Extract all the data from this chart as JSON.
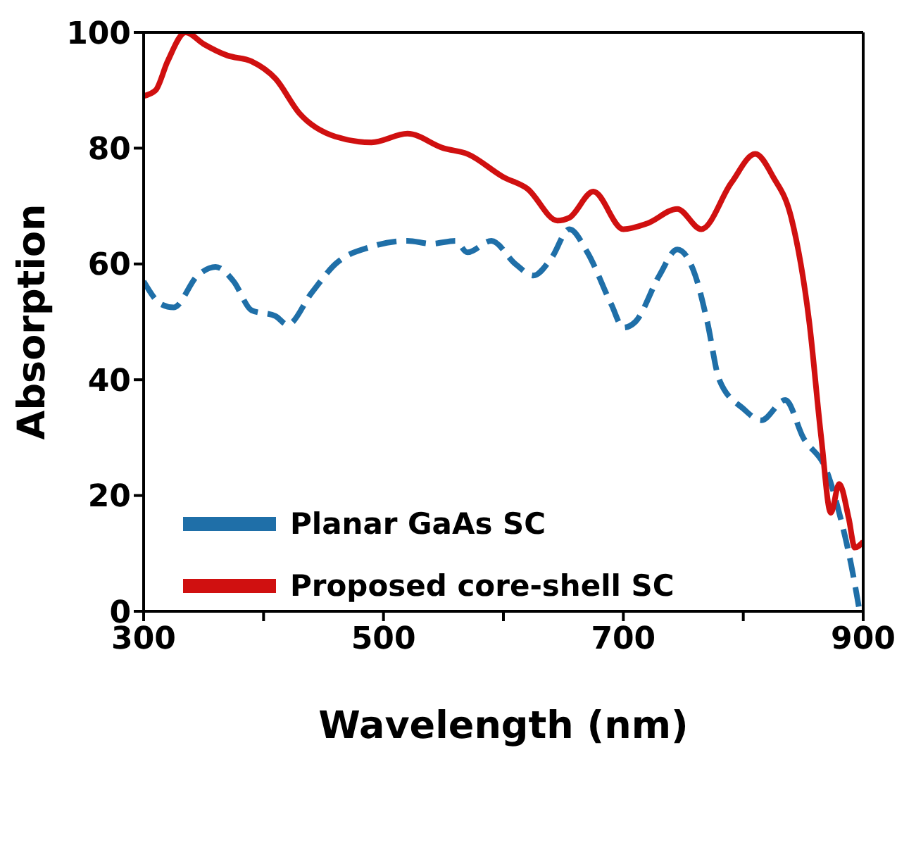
{
  "chart_data": {
    "type": "line",
    "xlabel": "Wavelength (nm)",
    "ylabel": "Absorption",
    "xlim": [
      300,
      900
    ],
    "ylim": [
      0,
      100
    ],
    "xticks": [
      300,
      {
        "value": 400,
        "label": null
      },
      500,
      {
        "value": 600,
        "label": null
      },
      700,
      {
        "value": 800,
        "label": null
      },
      900
    ],
    "yticks": [
      0,
      20,
      40,
      60,
      80,
      100
    ],
    "legend": "left",
    "marker": "none",
    "series": [
      {
        "name": "Planar GaAs SC",
        "color": "#1f6fa8",
        "line_style": "dashed",
        "x": [
          300,
          315,
          325,
          345,
          360,
          375,
          390,
          410,
          420,
          440,
          460,
          490,
          520,
          540,
          560,
          570,
          590,
          610,
          625,
          640,
          655,
          670,
          690,
          700,
          710,
          730,
          745,
          760,
          770,
          780,
          800,
          815,
          835,
          850,
          870,
          880,
          890,
          897
        ],
        "values": [
          57,
          53,
          52.5,
          58,
          59.5,
          57,
          52,
          51,
          49.5,
          55,
          60,
          63,
          64,
          63.5,
          64,
          62,
          64,
          60,
          58,
          61,
          66,
          62,
          53,
          49,
          50,
          58,
          62.5,
          58,
          50,
          40,
          35,
          33,
          36.5,
          30,
          24,
          17,
          8,
          0
        ]
      },
      {
        "name": "Proposed core-shell SC",
        "color": "#d01010",
        "line_style": "solid",
        "x": [
          300,
          310,
          320,
          335,
          350,
          370,
          390,
          410,
          430,
          460,
          490,
          520,
          550,
          570,
          600,
          620,
          645,
          655,
          675,
          700,
          720,
          745,
          765,
          790,
          810,
          825,
          840,
          855,
          865,
          873,
          880,
          888,
          893,
          900
        ],
        "values": [
          89,
          90,
          95,
          100,
          98,
          96,
          95,
          92,
          86,
          82,
          81,
          82.5,
          80,
          79,
          75,
          73,
          67.5,
          68,
          72.5,
          66,
          67,
          69.5,
          66,
          74,
          79,
          75,
          68,
          50,
          30,
          17,
          22,
          16,
          11,
          12
        ]
      }
    ]
  }
}
